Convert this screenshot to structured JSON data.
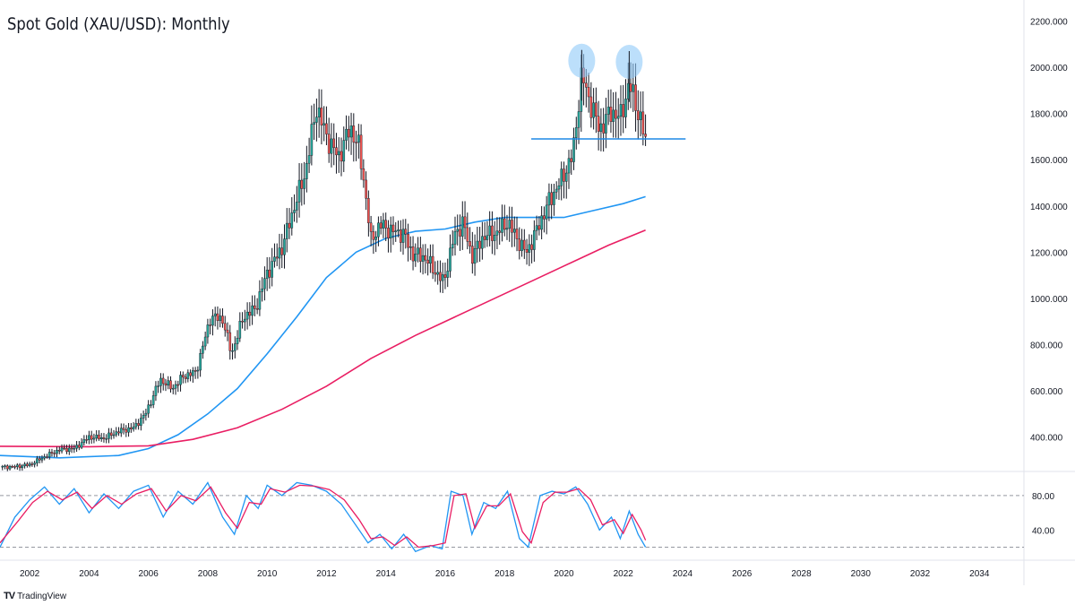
{
  "title": "Spot Gold (XAU/USD): Monthly",
  "brand": {
    "logo": "TV",
    "name": "TradingView"
  },
  "colors": {
    "bull": "#26a69a",
    "bear": "#ef5350",
    "candle_outline": "#131722",
    "ma_fast": "#2196f3",
    "ma_slow": "#e91e63",
    "stoch_k": "#2196f3",
    "stoch_d": "#e91e63",
    "highlight": "#90caf9",
    "level_line": "#1e88e5"
  },
  "chart_data": [
    {
      "type": "candlestick",
      "title": "Spot Gold (XAU/USD): Monthly",
      "y_ticks": [
        "400.000",
        "600.000",
        "800.000",
        "1000.000",
        "1200.000",
        "1400.000",
        "1600.000",
        "1800.000",
        "2000.000",
        "2200.000"
      ],
      "y_tick_values": [
        400,
        600,
        800,
        1000,
        1200,
        1400,
        1600,
        1800,
        2000,
        2200
      ],
      "x_ticks": [
        "2002",
        "2004",
        "2006",
        "2008",
        "2010",
        "2012",
        "2014",
        "2016",
        "2018",
        "2020",
        "2022",
        "2024",
        "2026",
        "2028",
        "2030",
        "2032",
        "2034"
      ],
      "x_tick_values": [
        2002,
        2004,
        2006,
        2008,
        2010,
        2012,
        2014,
        2016,
        2018,
        2020,
        2022,
        2024,
        2026,
        2028,
        2030,
        2032,
        2034
      ],
      "x_range": [
        2001.0,
        2035.5
      ],
      "y_range": [
        255,
        2260
      ],
      "grid": false,
      "price_path": [
        [
          2001.0,
          270
        ],
        [
          2001.5,
          272
        ],
        [
          2002.0,
          280
        ],
        [
          2002.5,
          315
        ],
        [
          2003.0,
          345
        ],
        [
          2003.5,
          350
        ],
        [
          2004.0,
          400
        ],
        [
          2004.5,
          395
        ],
        [
          2005.0,
          425
        ],
        [
          2005.5,
          440
        ],
        [
          2005.9,
          500
        ],
        [
          2006.4,
          650
        ],
        [
          2006.8,
          610
        ],
        [
          2007.2,
          665
        ],
        [
          2007.6,
          680
        ],
        [
          2008.1,
          920
        ],
        [
          2008.5,
          910
        ],
        [
          2008.8,
          760
        ],
        [
          2009.2,
          920
        ],
        [
          2009.6,
          955
        ],
        [
          2010.0,
          1110
        ],
        [
          2010.5,
          1220
        ],
        [
          2010.9,
          1390
        ],
        [
          2011.3,
          1550
        ],
        [
          2011.66,
          1830
        ],
        [
          2012.0,
          1700
        ],
        [
          2012.4,
          1610
        ],
        [
          2012.8,
          1740
        ],
        [
          2013.1,
          1650
        ],
        [
          2013.3,
          1470
        ],
        [
          2013.5,
          1250
        ],
        [
          2013.8,
          1320
        ],
        [
          2014.2,
          1290
        ],
        [
          2014.6,
          1280
        ],
        [
          2014.9,
          1190
        ],
        [
          2015.3,
          1180
        ],
        [
          2015.7,
          1110
        ],
        [
          2015.95,
          1070
        ],
        [
          2016.3,
          1270
        ],
        [
          2016.6,
          1330
        ],
        [
          2016.9,
          1180
        ],
        [
          2017.3,
          1270
        ],
        [
          2017.7,
          1280
        ],
        [
          2018.1,
          1330
        ],
        [
          2018.6,
          1220
        ],
        [
          2018.75,
          1200
        ],
        [
          2019.1,
          1300
        ],
        [
          2019.5,
          1420
        ],
        [
          2019.9,
          1510
        ],
        [
          2020.3,
          1620
        ],
        [
          2020.6,
          1970
        ],
        [
          2020.8,
          1880
        ],
        [
          2021.2,
          1730
        ],
        [
          2021.6,
          1810
        ],
        [
          2021.9,
          1780
        ],
        [
          2022.2,
          1930
        ],
        [
          2022.4,
          1850
        ],
        [
          2022.6,
          1760
        ],
        [
          2022.75,
          1680
        ]
      ],
      "highs": [
        {
          "x": 2020.6,
          "y": 2075
        },
        {
          "x": 2022.2,
          "y": 2070
        }
      ],
      "support_level": {
        "y": 1690,
        "x_start": 2018.9,
        "x_end": 2024.1
      },
      "series": [
        {
          "name": "",
          "kind": "ma_fast",
          "points": [
            [
              2001.0,
              320
            ],
            [
              2003.0,
              310
            ],
            [
              2005.0,
              320
            ],
            [
              2006.0,
              350
            ],
            [
              2007.0,
              410
            ],
            [
              2008.0,
              500
            ],
            [
              2009.0,
              610
            ],
            [
              2010.0,
              760
            ],
            [
              2011.0,
              920
            ],
            [
              2012.0,
              1090
            ],
            [
              2013.0,
              1200
            ],
            [
              2014.0,
              1260
            ],
            [
              2015.0,
              1290
            ],
            [
              2016.0,
              1300
            ],
            [
              2017.0,
              1330
            ],
            [
              2018.0,
              1350
            ],
            [
              2019.0,
              1350
            ],
            [
              2020.0,
              1350
            ],
            [
              2021.0,
              1380
            ],
            [
              2022.0,
              1410
            ],
            [
              2022.75,
              1440
            ]
          ]
        },
        {
          "name": "",
          "kind": "ma_slow",
          "points": [
            [
              2001.0,
              360
            ],
            [
              2004.0,
              358
            ],
            [
              2006.0,
              362
            ],
            [
              2007.5,
              390
            ],
            [
              2009.0,
              440
            ],
            [
              2010.5,
              520
            ],
            [
              2012.0,
              620
            ],
            [
              2013.5,
              740
            ],
            [
              2015.0,
              840
            ],
            [
              2017.0,
              960
            ],
            [
              2019.0,
              1080
            ],
            [
              2020.5,
              1170
            ],
            [
              2021.5,
              1230
            ],
            [
              2022.75,
              1295
            ]
          ]
        }
      ]
    },
    {
      "type": "line",
      "title": "",
      "y_ticks": [
        "40.00",
        "80.00"
      ],
      "y_tick_values": [
        40,
        80
      ],
      "y_range": [
        7,
        107
      ],
      "overbought": 80,
      "oversold": 20,
      "series": [
        {
          "name": "",
          "kind": "stoch_k",
          "points": [
            [
              2001.0,
              20
            ],
            [
              2001.5,
              55
            ],
            [
              2002.0,
              75
            ],
            [
              2002.5,
              90
            ],
            [
              2003.0,
              70
            ],
            [
              2003.5,
              88
            ],
            [
              2004.0,
              60
            ],
            [
              2004.5,
              82
            ],
            [
              2005.0,
              65
            ],
            [
              2005.5,
              85
            ],
            [
              2006.0,
              92
            ],
            [
              2006.5,
              55
            ],
            [
              2007.0,
              85
            ],
            [
              2007.5,
              70
            ],
            [
              2008.0,
              95
            ],
            [
              2008.5,
              55
            ],
            [
              2008.9,
              35
            ],
            [
              2009.3,
              80
            ],
            [
              2009.7,
              65
            ],
            [
              2010.0,
              92
            ],
            [
              2010.5,
              80
            ],
            [
              2011.0,
              95
            ],
            [
              2011.5,
              92
            ],
            [
              2012.0,
              85
            ],
            [
              2012.5,
              70
            ],
            [
              2013.0,
              45
            ],
            [
              2013.4,
              25
            ],
            [
              2013.8,
              35
            ],
            [
              2014.2,
              18
            ],
            [
              2014.6,
              35
            ],
            [
              2015.0,
              15
            ],
            [
              2015.5,
              22
            ],
            [
              2015.9,
              18
            ],
            [
              2016.2,
              85
            ],
            [
              2016.6,
              80
            ],
            [
              2016.9,
              35
            ],
            [
              2017.3,
              72
            ],
            [
              2017.7,
              65
            ],
            [
              2018.1,
              85
            ],
            [
              2018.5,
              30
            ],
            [
              2018.8,
              20
            ],
            [
              2019.2,
              80
            ],
            [
              2019.6,
              85
            ],
            [
              2020.0,
              82
            ],
            [
              2020.4,
              90
            ],
            [
              2020.8,
              70
            ],
            [
              2021.2,
              40
            ],
            [
              2021.6,
              55
            ],
            [
              2021.9,
              30
            ],
            [
              2022.2,
              62
            ],
            [
              2022.5,
              35
            ],
            [
              2022.75,
              20
            ]
          ]
        },
        {
          "name": "",
          "kind": "stoch_d",
          "points": [
            [
              2001.0,
              25
            ],
            [
              2001.6,
              50
            ],
            [
              2002.1,
              72
            ],
            [
              2002.6,
              85
            ],
            [
              2003.1,
              75
            ],
            [
              2003.6,
              84
            ],
            [
              2004.1,
              65
            ],
            [
              2004.6,
              80
            ],
            [
              2005.1,
              70
            ],
            [
              2005.6,
              82
            ],
            [
              2006.1,
              88
            ],
            [
              2006.6,
              62
            ],
            [
              2007.1,
              80
            ],
            [
              2007.6,
              74
            ],
            [
              2008.1,
              90
            ],
            [
              2008.6,
              60
            ],
            [
              2009.0,
              42
            ],
            [
              2009.4,
              72
            ],
            [
              2009.8,
              70
            ],
            [
              2010.1,
              88
            ],
            [
              2010.6,
              84
            ],
            [
              2011.1,
              92
            ],
            [
              2011.6,
              91
            ],
            [
              2012.1,
              87
            ],
            [
              2012.6,
              75
            ],
            [
              2013.1,
              52
            ],
            [
              2013.5,
              30
            ],
            [
              2013.9,
              32
            ],
            [
              2014.3,
              22
            ],
            [
              2014.7,
              32
            ],
            [
              2015.1,
              20
            ],
            [
              2015.6,
              22
            ],
            [
              2016.0,
              25
            ],
            [
              2016.3,
              80
            ],
            [
              2016.7,
              82
            ],
            [
              2017.0,
              42
            ],
            [
              2017.4,
              68
            ],
            [
              2017.8,
              68
            ],
            [
              2018.2,
              82
            ],
            [
              2018.6,
              38
            ],
            [
              2018.9,
              25
            ],
            [
              2019.3,
              72
            ],
            [
              2019.7,
              84
            ],
            [
              2020.1,
              84
            ],
            [
              2020.5,
              88
            ],
            [
              2020.9,
              75
            ],
            [
              2021.3,
              46
            ],
            [
              2021.7,
              52
            ],
            [
              2022.0,
              36
            ],
            [
              2022.3,
              58
            ],
            [
              2022.6,
              40
            ],
            [
              2022.75,
              28
            ]
          ]
        }
      ]
    }
  ]
}
